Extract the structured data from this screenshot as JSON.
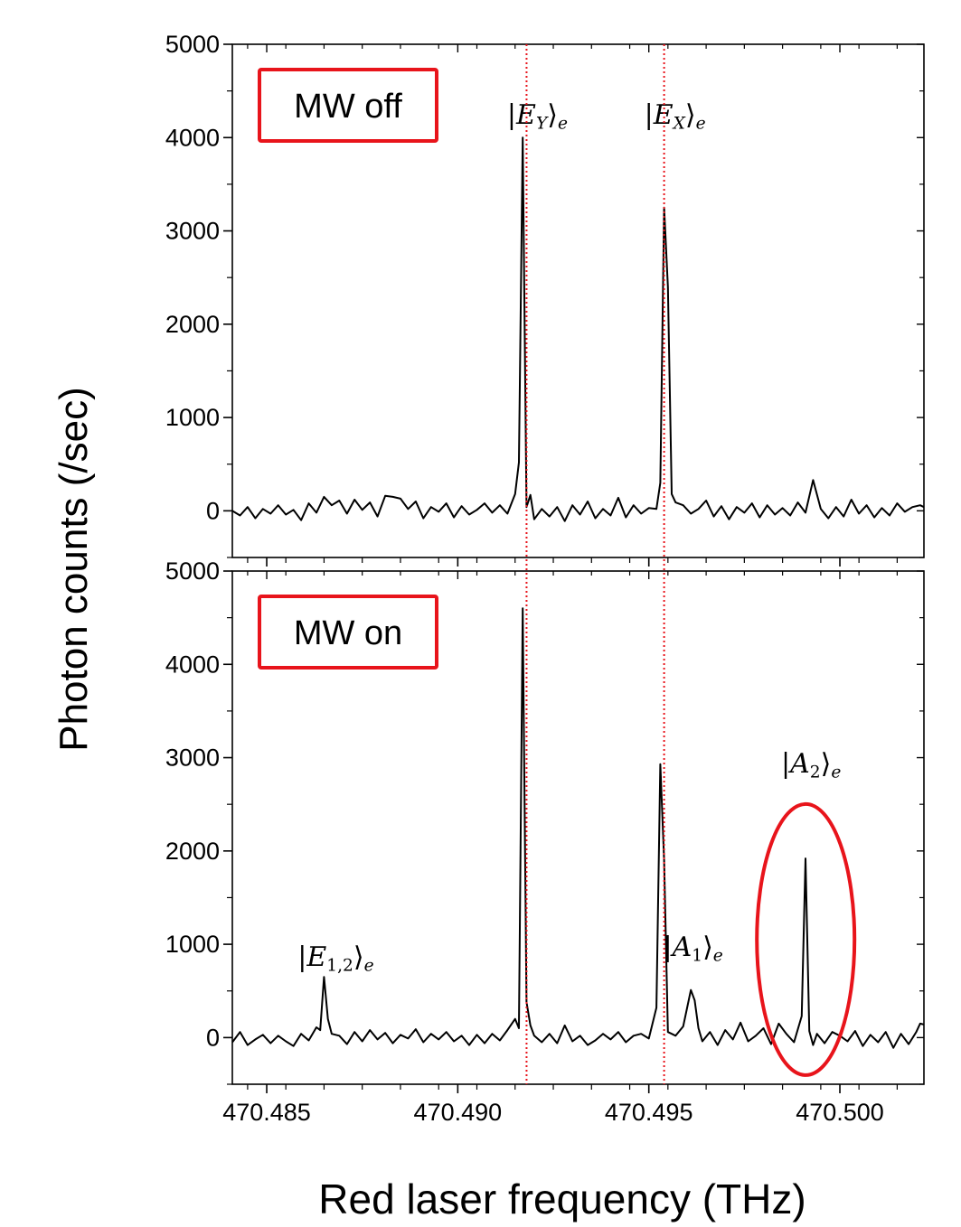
{
  "chart_data": {
    "type": "line",
    "xlabel": "Red laser frequency (THz)",
    "ylabel": "Photon counts (/sec)",
    "xlim": [
      470.4841,
      470.5022
    ],
    "xticks": [
      470.485,
      470.49,
      470.495,
      470.5
    ],
    "xtick_labels": [
      "470.485",
      "470.490",
      "470.495",
      "470.500"
    ],
    "ylim": [
      -500,
      5000
    ],
    "yticks": [
      0,
      1000,
      2000,
      3000,
      4000,
      5000
    ],
    "ytick_labels": [
      "0",
      "1000",
      "2000",
      "3000",
      "4000",
      "5000"
    ],
    "reference_lines_x": [
      470.4918,
      470.4954
    ],
    "colors": {
      "trace": "#000000",
      "highlight": "#e8141b",
      "reference": "#e8141b"
    },
    "grid": false,
    "panels": [
      {
        "name": "top",
        "box_label": "MW off",
        "peak_labels": [
          {
            "state": "E",
            "sub": "Y",
            "x": 470.4918
          },
          {
            "state": "E",
            "sub": "X",
            "x": 470.4954
          }
        ],
        "series": [
          {
            "x": [
              470.4841,
              470.4843,
              470.4845,
              470.4847,
              470.4849,
              470.4851,
              470.4853,
              470.4855,
              470.4857,
              470.4859,
              470.4861,
              470.4863,
              470.4865,
              470.4867,
              470.4869,
              470.4871,
              470.4873,
              470.4875,
              470.4877,
              470.4879,
              470.4881,
              470.4883,
              470.4885,
              470.4887,
              470.4889,
              470.4891,
              470.4893,
              470.4895,
              470.4897,
              470.4899,
              470.4901,
              470.4903,
              470.4905,
              470.4907,
              470.4909,
              470.4911,
              470.4913,
              470.4915,
              470.4916,
              470.4917,
              470.4918,
              470.4919,
              470.492,
              470.4922,
              470.4924,
              470.4926,
              470.4928,
              470.493,
              470.4932,
              470.4934,
              470.4936,
              470.4938,
              470.494,
              470.4942,
              470.4944,
              470.4946,
              470.4948,
              470.495,
              470.4952,
              470.4953,
              470.4954,
              470.4955,
              470.4956,
              470.4957,
              470.4959,
              470.4961,
              470.4963,
              470.4965,
              470.4967,
              470.4969,
              470.4971,
              470.4973,
              470.4975,
              470.4977,
              470.4979,
              470.4981,
              470.4983,
              470.4985,
              470.4987,
              470.4989,
              470.4991,
              470.4993,
              470.4995,
              470.4997,
              470.4999,
              470.5001,
              470.5003,
              470.5005,
              470.5007,
              470.5009,
              470.5011,
              470.5013,
              470.5015,
              470.5017,
              470.5019,
              470.5021,
              470.5022
            ],
            "y": [
              0,
              -50,
              40,
              -80,
              20,
              -30,
              60,
              -40,
              10,
              -100,
              80,
              -20,
              150,
              60,
              110,
              -30,
              120,
              10,
              90,
              -60,
              160,
              150,
              130,
              20,
              100,
              -80,
              40,
              -10,
              80,
              -70,
              50,
              -40,
              10,
              80,
              -20,
              60,
              -30,
              180,
              520,
              4000,
              40,
              170,
              -90,
              20,
              -60,
              40,
              -110,
              60,
              -40,
              100,
              -80,
              20,
              -50,
              140,
              -70,
              60,
              -30,
              30,
              20,
              300,
              3250,
              2400,
              180,
              90,
              60,
              -30,
              20,
              110,
              -60,
              50,
              -90,
              40,
              -20,
              80,
              -70,
              60,
              -40,
              30,
              -50,
              90,
              -20,
              330,
              20,
              -80,
              40,
              -60,
              120,
              -30,
              60,
              -70,
              30,
              -50,
              80,
              -10,
              40,
              60,
              40
            ]
          }
        ]
      },
      {
        "name": "bottom",
        "box_label": "MW on",
        "highlight_x": 470.4992,
        "peak_labels": [
          {
            "state": "E",
            "sub": "1,2",
            "x": 470.4865
          },
          {
            "state": "A",
            "sub": "1",
            "x": 470.4963
          },
          {
            "state": "A",
            "sub": "2",
            "x": 470.4992
          }
        ],
        "series": [
          {
            "x": [
              470.4841,
              470.4843,
              470.4845,
              470.4847,
              470.4849,
              470.4851,
              470.4853,
              470.4855,
              470.4857,
              470.4859,
              470.4861,
              470.4863,
              470.4864,
              470.4865,
              470.4866,
              470.4867,
              470.4869,
              470.4871,
              470.4873,
              470.4875,
              470.4877,
              470.4879,
              470.4881,
              470.4883,
              470.4885,
              470.4887,
              470.4889,
              470.4891,
              470.4893,
              470.4895,
              470.4897,
              470.4899,
              470.4901,
              470.4903,
              470.4905,
              470.4907,
              470.4909,
              470.4911,
              470.4913,
              470.4915,
              470.4916,
              470.4917,
              470.4918,
              470.4919,
              470.492,
              470.4922,
              470.4924,
              470.4926,
              470.4928,
              470.493,
              470.4932,
              470.4934,
              470.4936,
              470.4938,
              470.494,
              470.4942,
              470.4944,
              470.4946,
              470.4948,
              470.495,
              470.4952,
              470.4953,
              470.4954,
              470.4955,
              470.4956,
              470.4957,
              470.4959,
              470.4961,
              470.4962,
              470.4963,
              470.4964,
              470.4966,
              470.4968,
              470.497,
              470.4972,
              470.4974,
              470.4976,
              470.4978,
              470.498,
              470.4982,
              470.4984,
              470.4986,
              470.4988,
              470.499,
              470.4991,
              470.4992,
              470.4993,
              470.4994,
              470.4996,
              470.4998,
              470.5,
              470.5002,
              470.5004,
              470.5006,
              470.5008,
              470.501,
              470.5012,
              470.5014,
              470.5016,
              470.5018,
              470.502,
              470.5021,
              470.5022
            ],
            "y": [
              -50,
              60,
              -80,
              -20,
              30,
              -60,
              20,
              -40,
              -90,
              40,
              -30,
              110,
              80,
              650,
              200,
              40,
              20,
              -70,
              60,
              -40,
              80,
              -20,
              50,
              -60,
              30,
              -10,
              90,
              -50,
              40,
              -20,
              60,
              -40,
              20,
              -80,
              30,
              -60,
              40,
              -30,
              80,
              200,
              100,
              4600,
              380,
              130,
              20,
              -50,
              40,
              -60,
              130,
              -40,
              20,
              -80,
              -30,
              40,
              -20,
              60,
              -50,
              20,
              40,
              -10,
              320,
              2930,
              1900,
              60,
              40,
              20,
              120,
              510,
              400,
              100,
              -40,
              60,
              -80,
              80,
              -20,
              160,
              -40,
              20,
              100,
              -70,
              150,
              40,
              -50,
              230,
              1920,
              70,
              -80,
              40,
              -60,
              60,
              20,
              -40,
              70,
              -90,
              30,
              -50,
              60,
              -110,
              40,
              -70,
              60,
              150,
              140
            ]
          }
        ]
      }
    ]
  }
}
